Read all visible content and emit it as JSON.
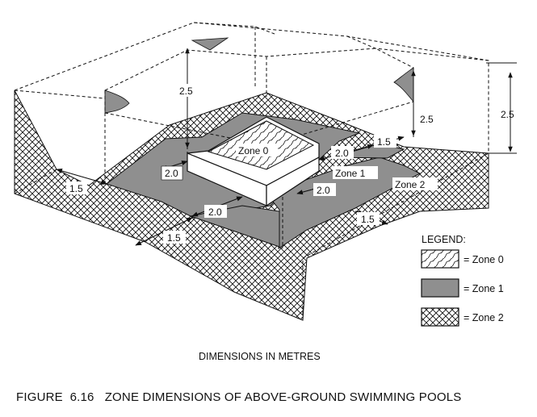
{
  "colors": {
    "zone1_fill": "#8f8f8f",
    "line": "#111111",
    "background": "#ffffff"
  },
  "dimensions": {
    "left_height": "2.5",
    "right_height_inner": "2.5",
    "right_height_outer": "2.5",
    "zone1_back_right": "2.0",
    "zone1_front_left": "2.0",
    "zone1_front_right": "2.0",
    "zone1_front_center": "2.0",
    "zone2_left": "1.5",
    "zone2_back_right": "1.5",
    "zone2_front_right": "1.5",
    "zone2_front_left": "1.5"
  },
  "zone_labels": {
    "zone0": "Zone 0",
    "zone1": "Zone 1",
    "zone2": "Zone 2"
  },
  "legend": {
    "title": "LEGEND:",
    "items": [
      {
        "pattern": "wavy-hatch",
        "label": "= Zone 0"
      },
      {
        "pattern": "solid-grey",
        "label": "= Zone 1"
      },
      {
        "pattern": "crosshatch",
        "label": "= Zone 2"
      }
    ]
  },
  "units_note": "DIMENSIONS IN METRES",
  "caption": "FIGURE  6.16   ZONE DIMENSIONS OF ABOVE-GROUND SWIMMING POOLS"
}
